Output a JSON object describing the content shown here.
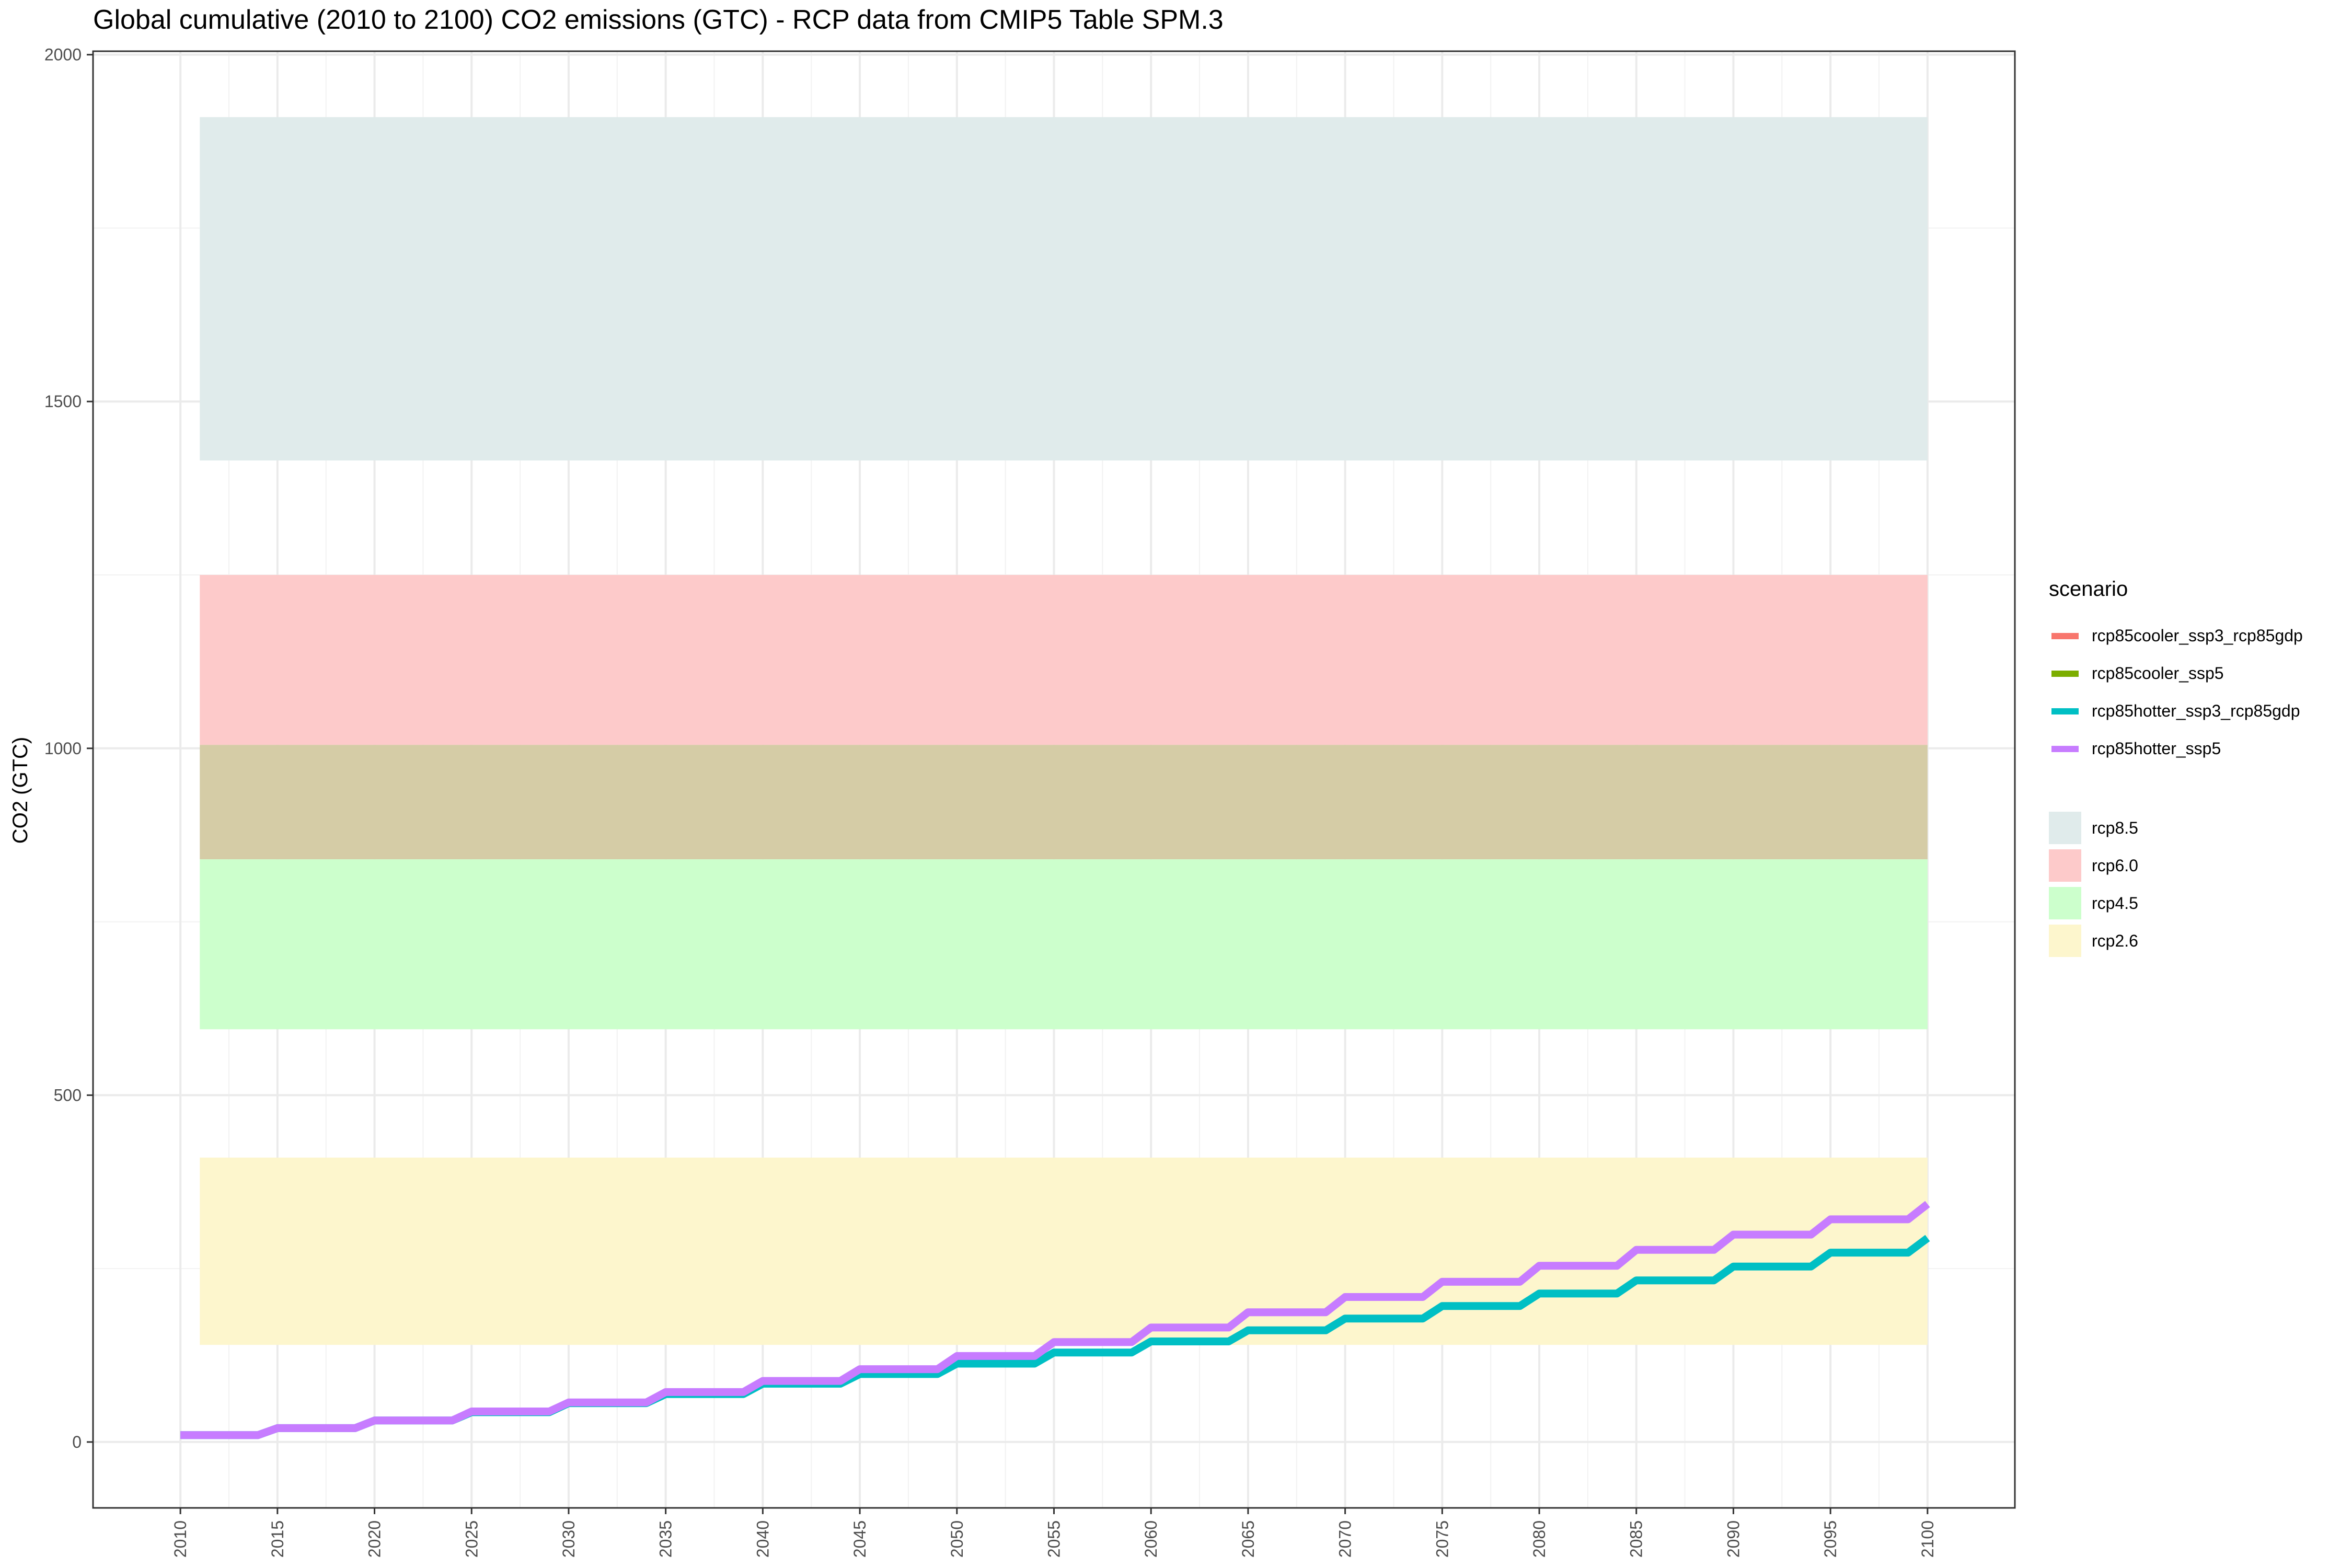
{
  "title": "Global cumulative (2010 to 2100) CO2 emissions (GTC) - RCP data from CMIP5 Table SPM.3",
  "chart_data": {
    "type": "line",
    "title": "Global cumulative (2010 to 2100) CO2 emissions (GTC) - RCP data from CMIP5 Table SPM.3",
    "xlabel": "",
    "ylabel": "CO2 (GTC)",
    "xlim": [
      2005.5,
      2104.5
    ],
    "ylim": [
      -95,
      2005
    ],
    "x_ticks": [
      2010,
      2015,
      2020,
      2025,
      2030,
      2035,
      2040,
      2045,
      2050,
      2055,
      2060,
      2065,
      2070,
      2075,
      2080,
      2085,
      2090,
      2095,
      2100
    ],
    "y_ticks": [
      0,
      500,
      1000,
      1500,
      2000
    ],
    "grid": true,
    "legend_position": "right",
    "line_legend_title": "scenario",
    "series": [
      {
        "name": "rcp85cooler_ssp3_rcp85gdp",
        "color": "#F8766D",
        "points": []
      },
      {
        "name": "rcp85cooler_ssp5",
        "color": "#7CAE00",
        "points": []
      },
      {
        "name": "rcp85hotter_ssp3_rcp85gdp",
        "color": "#00BFC4",
        "points": [
          [
            2010,
            10
          ],
          [
            2014,
            10
          ],
          [
            2015,
            20
          ],
          [
            2019,
            20
          ],
          [
            2020,
            31
          ],
          [
            2024,
            31
          ],
          [
            2025,
            43
          ],
          [
            2029,
            43
          ],
          [
            2030,
            56
          ],
          [
            2034,
            56
          ],
          [
            2035,
            69
          ],
          [
            2039,
            69
          ],
          [
            2040,
            84
          ],
          [
            2044,
            84
          ],
          [
            2045,
            98
          ],
          [
            2049,
            98
          ],
          [
            2050,
            113
          ],
          [
            2054,
            113
          ],
          [
            2055,
            129
          ],
          [
            2059,
            129
          ],
          [
            2060,
            145
          ],
          [
            2064,
            145
          ],
          [
            2065,
            161
          ],
          [
            2069,
            161
          ],
          [
            2070,
            178
          ],
          [
            2074,
            178
          ],
          [
            2075,
            196
          ],
          [
            2079,
            196
          ],
          [
            2080,
            214
          ],
          [
            2084,
            214
          ],
          [
            2085,
            233
          ],
          [
            2089,
            233
          ],
          [
            2090,
            253
          ],
          [
            2094,
            253
          ],
          [
            2095,
            273
          ],
          [
            2099,
            273
          ],
          [
            2100,
            294
          ]
        ]
      },
      {
        "name": "rcp85hotter_ssp5",
        "color": "#C77CFF",
        "points": [
          [
            2010,
            10
          ],
          [
            2014,
            10
          ],
          [
            2015,
            20
          ],
          [
            2019,
            20
          ],
          [
            2020,
            31
          ],
          [
            2024,
            31
          ],
          [
            2025,
            44
          ],
          [
            2029,
            44
          ],
          [
            2030,
            57
          ],
          [
            2034,
            57
          ],
          [
            2035,
            72
          ],
          [
            2039,
            72
          ],
          [
            2040,
            88
          ],
          [
            2044,
            88
          ],
          [
            2045,
            105
          ],
          [
            2049,
            105
          ],
          [
            2050,
            124
          ],
          [
            2054,
            124
          ],
          [
            2055,
            144
          ],
          [
            2059,
            144
          ],
          [
            2060,
            165
          ],
          [
            2064,
            165
          ],
          [
            2065,
            187
          ],
          [
            2069,
            187
          ],
          [
            2070,
            209
          ],
          [
            2074,
            209
          ],
          [
            2075,
            231
          ],
          [
            2079,
            231
          ],
          [
            2080,
            254
          ],
          [
            2084,
            254
          ],
          [
            2085,
            277
          ],
          [
            2089,
            277
          ],
          [
            2090,
            299
          ],
          [
            2094,
            299
          ],
          [
            2095,
            321
          ],
          [
            2099,
            321
          ],
          [
            2100,
            343
          ]
        ]
      }
    ],
    "fill_legend": [
      {
        "name": "rcp8.5",
        "color": "#E0EBEB"
      },
      {
        "name": "rcp6.0",
        "color": "#FDCACA"
      },
      {
        "name": "rcp4.5",
        "color": "#CCFFCC"
      },
      {
        "name": "rcp2.6",
        "color": "#FDF6CD"
      }
    ],
    "bands": [
      {
        "name": "rcp8.5",
        "color": "#E0EBEB",
        "x": [
          2011,
          2100
        ],
        "y": [
          1415,
          1910
        ]
      },
      {
        "name": "rcp6.0",
        "color": "#FDCACA",
        "x": [
          2011,
          2100
        ],
        "y": [
          1005,
          1250
        ]
      },
      {
        "name": "rcp6.0-rcp4.5-overlap",
        "color": "#D5CCA6",
        "x": [
          2011,
          2100
        ],
        "y": [
          840,
          1005
        ]
      },
      {
        "name": "rcp4.5",
        "color": "#CCFFCC",
        "x": [
          2011,
          2100
        ],
        "y": [
          595,
          840
        ]
      },
      {
        "name": "rcp2.6",
        "color": "#FDF6CD",
        "x": [
          2011,
          2100
        ],
        "y": [
          140,
          410
        ]
      }
    ]
  }
}
